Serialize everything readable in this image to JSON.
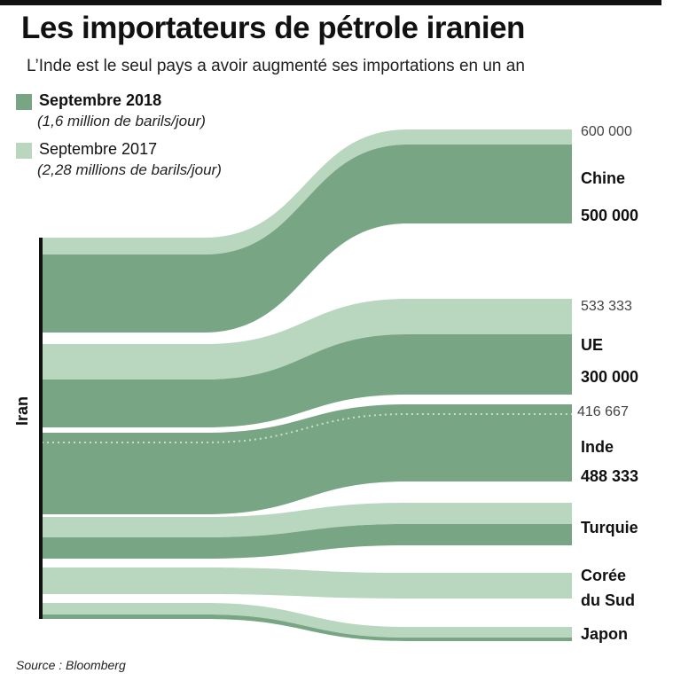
{
  "title": "Les importateurs de pétrole iranien",
  "subtitle": "L’Inde est le seul pays a avoir augmenté ses importations en un an",
  "legend": [
    {
      "label": "Septembre 2018",
      "sub": "(1,6 million de barils/jour)",
      "color": "#78a583"
    },
    {
      "label": "Septembre 2017",
      "sub": "(2,28 millions de barils/jour)",
      "color": "#b9d7bf"
    }
  ],
  "source": "Source : Bloomberg",
  "chart_data": {
    "type": "sankey",
    "title": "Les importateurs de pétrole iranien",
    "unit": "barils/jour",
    "origin": "Iran",
    "series": [
      {
        "name": "Septembre 2018",
        "total": "1,6 million de barils/jour"
      },
      {
        "name": "Septembre 2017",
        "total": "2,28 millions de barils/jour"
      }
    ],
    "flows": [
      {
        "country": "Chine",
        "v2018": 500000,
        "v2017": 600000,
        "label2018": "500 000",
        "label2017": "600 000"
      },
      {
        "country": "UE",
        "v2018": 300000,
        "v2017": 533333,
        "label2018": "300 000",
        "label2017": "533 333"
      },
      {
        "country": "Inde",
        "v2018": 488333,
        "v2017": 416667,
        "label2018": "488 333",
        "label2017": "416 667"
      },
      {
        "country": "Turquie",
        "v2018": null,
        "v2017": null
      },
      {
        "country": "Corée du Sud",
        "country_line1": "Corée",
        "country_line2": "du Sud",
        "v2018": null,
        "v2017": null
      },
      {
        "country": "Japon",
        "v2018": null,
        "v2017": null
      }
    ]
  }
}
